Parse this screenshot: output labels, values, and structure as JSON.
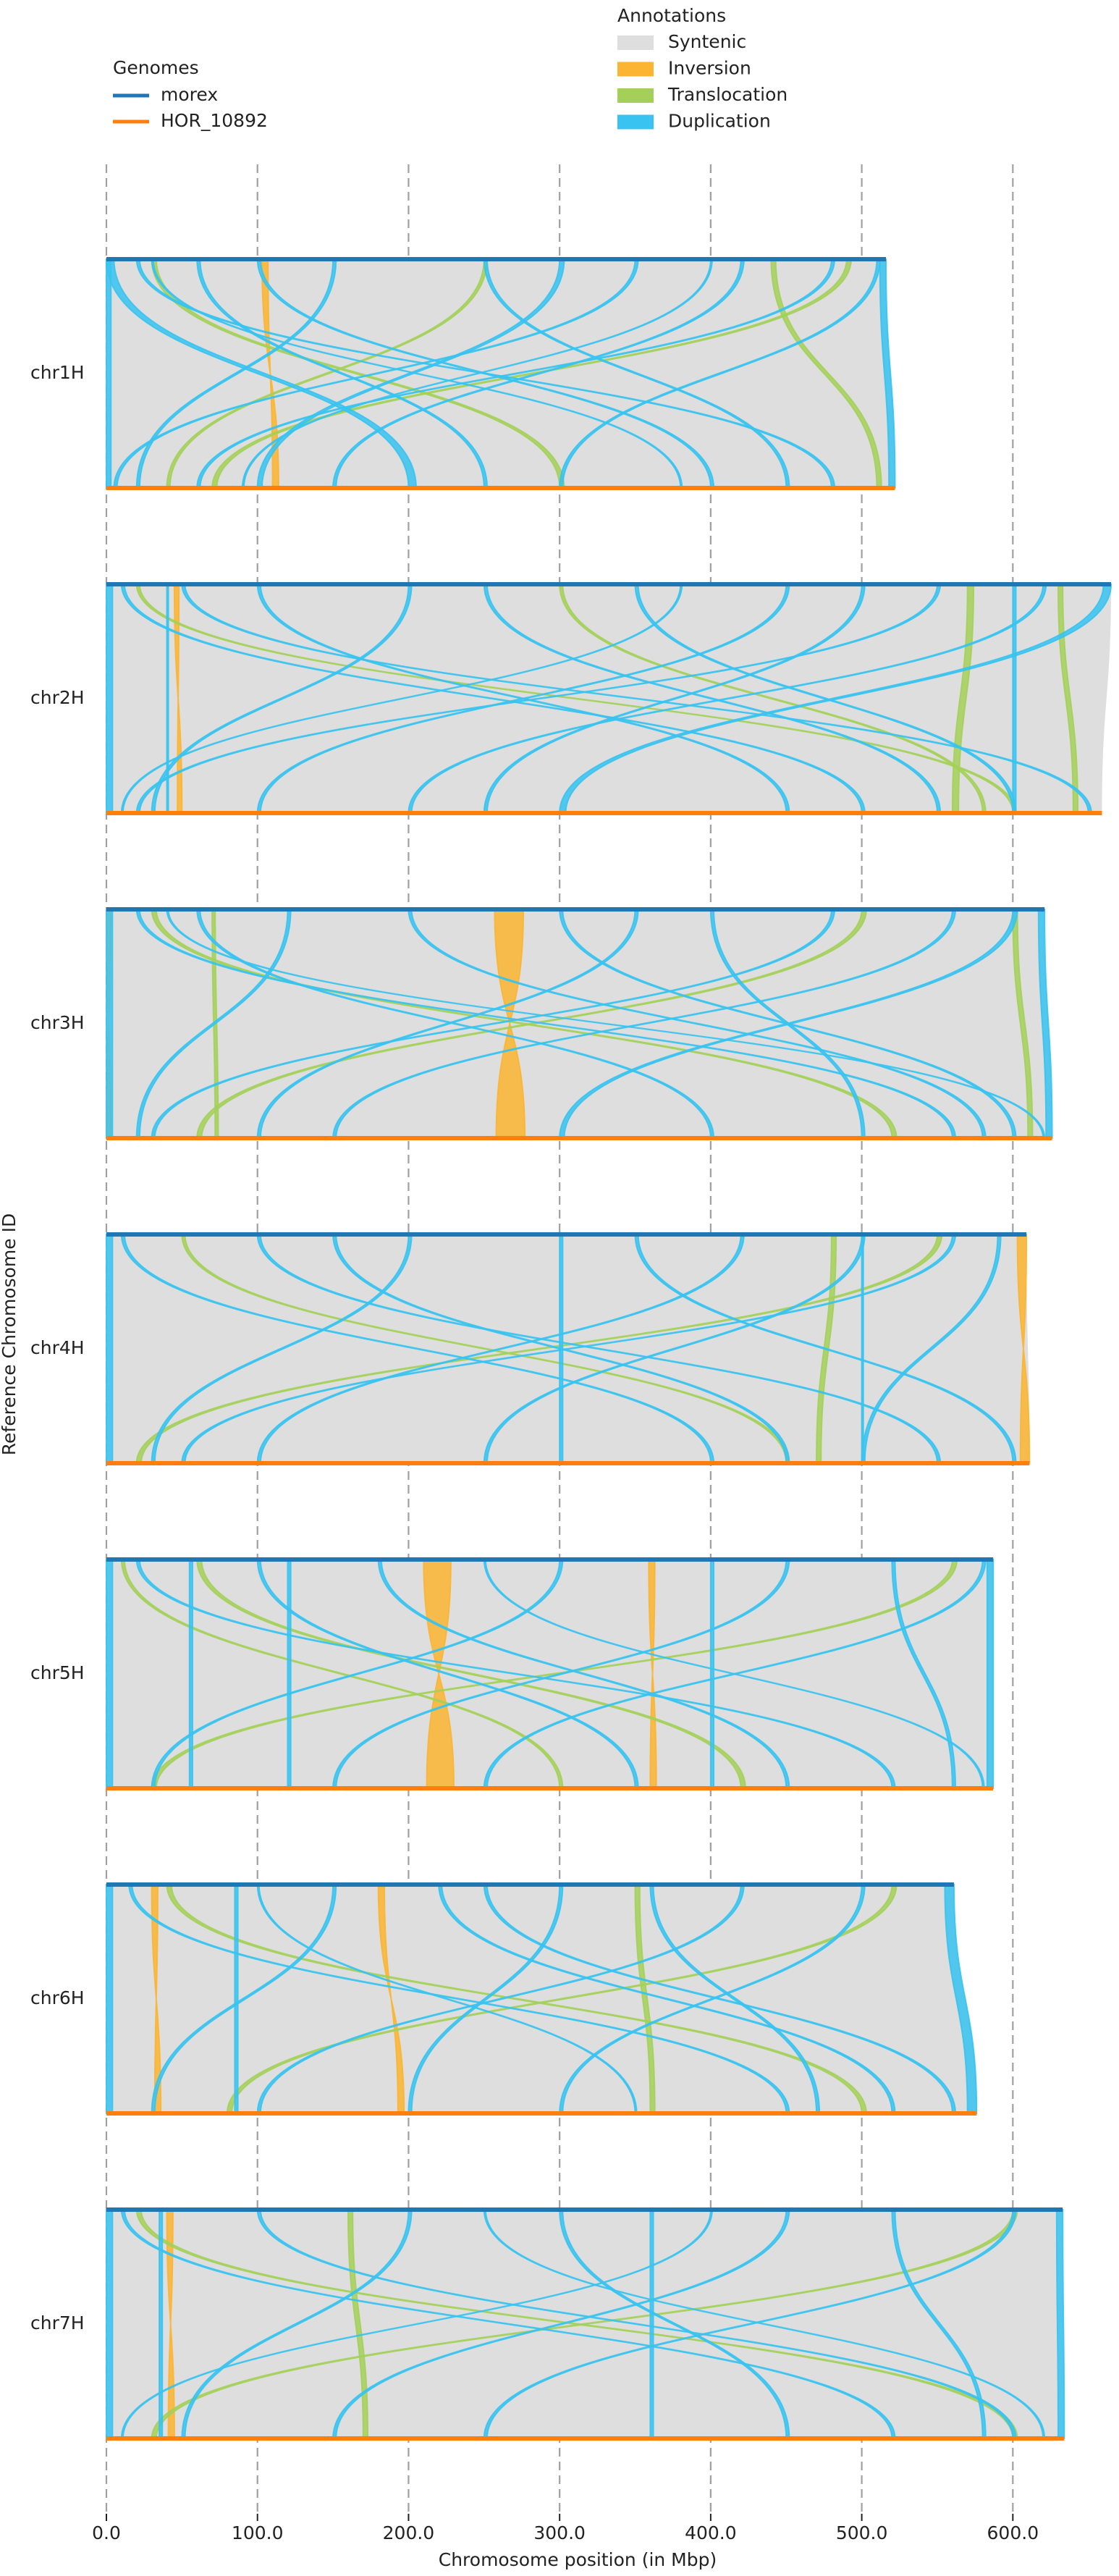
{
  "chart_data": {
    "type": "synteny",
    "xlabel": "Chromosome position (in Mbp)",
    "ylabel": "Reference Chromosome ID",
    "xlim": [
      0,
      665
    ],
    "xticks": [
      {
        "value": 0,
        "label": "0.0"
      },
      {
        "value": 100,
        "label": "100.0"
      },
      {
        "value": 200,
        "label": "200.0"
      },
      {
        "value": 300,
        "label": "300.0"
      },
      {
        "value": 400,
        "label": "400.0"
      },
      {
        "value": 500,
        "label": "500.0"
      },
      {
        "value": 600,
        "label": "600.0"
      }
    ],
    "grid": true,
    "genomes_title": "Genomes",
    "genomes": [
      {
        "name": "morex",
        "color": "#1f77b4"
      },
      {
        "name": "HOR_10892",
        "color": "#ff7f0e"
      }
    ],
    "annotations_title": "Annotations",
    "annotations": [
      {
        "name": "Syntenic",
        "color": "#dedede"
      },
      {
        "name": "Inversion",
        "color": "#fbb532"
      },
      {
        "name": "Translocation",
        "color": "#a4d05a"
      },
      {
        "name": "Duplication",
        "color": "#38c3f0"
      }
    ],
    "chromosomes": [
      {
        "name": "chr1H",
        "lengths": [
          516,
          522
        ],
        "blocks": [
          [
            [
              0,
              516,
              0,
              522
            ]
          ],
          [
            [
              103,
              107,
              114,
              110
            ]
          ],
          [
            [
              30,
              33,
              300,
              303
            ],
            [
              250,
              252,
              40,
              42
            ],
            [
              440,
              443,
              510,
              513
            ],
            [
              490,
              493,
              70,
              73
            ]
          ],
          [
            [
              0,
              5,
              200,
              205
            ],
            [
              20,
              22,
              480,
              482
            ],
            [
              100,
              102,
              400,
              402
            ],
            [
              150,
              152,
              20,
              22
            ],
            [
              300,
              303,
              100,
              103
            ],
            [
              350,
              352,
              5,
              7
            ],
            [
              480,
              482,
              60,
              62
            ],
            [
              510,
              512,
              300,
              302
            ],
            [
              60,
              62,
              250,
              252
            ],
            [
              250,
              252,
              450,
              452
            ],
            [
              420,
              422,
              150,
              152
            ],
            [
              0,
              3,
              0,
              3
            ],
            [
              512,
              516,
              518,
              522
            ],
            [
              30,
              31,
              380,
              381
            ],
            [
              400,
              401,
              90,
              91
            ]
          ]
        ]
      },
      {
        "name": "chr2H",
        "lengths": [
          665,
          659
        ],
        "blocks": [
          [
            [
              0,
              665,
              0,
              659
            ]
          ],
          [
            [
              45,
              48,
              50,
              47
            ]
          ],
          [
            [
              570,
              574,
              560,
              564
            ],
            [
              20,
              22,
              600,
              602
            ],
            [
              630,
              633,
              640,
              643
            ],
            [
              300,
              302,
              580,
              582
            ]
          ],
          [
            [
              0,
              4,
              0,
              4
            ],
            [
              10,
              12,
              500,
              502
            ],
            [
              50,
              52,
              650,
              652
            ],
            [
              100,
              102,
              450,
              452
            ],
            [
              200,
              202,
              30,
              32
            ],
            [
              350,
              352,
              600,
              602
            ],
            [
              450,
              452,
              100,
              102
            ],
            [
              550,
              552,
              20,
              22
            ],
            [
              620,
              622,
              200,
              202
            ],
            [
              660,
              665,
              300,
              304
            ],
            [
              250,
              252,
              550,
              552
            ],
            [
              500,
              502,
              250,
              252
            ],
            [
              600,
              602,
              600,
              602
            ],
            [
              40,
              41,
              40,
              41
            ],
            [
              380,
              381,
              10,
              11
            ]
          ]
        ]
      },
      {
        "name": "chr3H",
        "lengths": [
          621,
          626
        ],
        "blocks": [
          [
            [
              0,
              621,
              0,
              626
            ]
          ],
          [
            [
              257,
              276,
              277,
              258
            ],
            [
              0,
              3,
              3,
              0
            ]
          ],
          [
            [
              30,
              33,
              520,
              523
            ],
            [
              500,
              503,
              60,
              63
            ],
            [
              70,
              72,
              72,
              74
            ],
            [
              600,
              603,
              610,
              613
            ]
          ],
          [
            [
              0,
              4,
              0,
              4
            ],
            [
              20,
              22,
              560,
              562
            ],
            [
              60,
              62,
              400,
              402
            ],
            [
              120,
              122,
              20,
              22
            ],
            [
              200,
              202,
              580,
              582
            ],
            [
              350,
              352,
              100,
              102
            ],
            [
              400,
              402,
              500,
              502
            ],
            [
              480,
              482,
              30,
              32
            ],
            [
              560,
              562,
              150,
              152
            ],
            [
              600,
              603,
              300,
              303
            ],
            [
              617,
              621,
              622,
              626
            ],
            [
              300,
              302,
              600,
              602
            ],
            [
              40,
              41,
              620,
              621
            ]
          ]
        ]
      },
      {
        "name": "chr4H",
        "lengths": [
          609,
          611
        ],
        "blocks": [
          [
            [
              0,
              609,
              0,
              611
            ]
          ],
          [
            [
              603,
              609,
              611,
              605
            ]
          ],
          [
            [
              480,
              483,
              470,
              473
            ],
            [
              50,
              52,
              450,
              452
            ],
            [
              550,
              553,
              20,
              23
            ]
          ],
          [
            [
              0,
              4,
              0,
              4
            ],
            [
              10,
              12,
              400,
              402
            ],
            [
              100,
              102,
              550,
              552
            ],
            [
              200,
              202,
              30,
              32
            ],
            [
              300,
              302,
              300,
              302
            ],
            [
              350,
              352,
              600,
              602
            ],
            [
              420,
              422,
              100,
              102
            ],
            [
              500,
              502,
              250,
              252
            ],
            [
              560,
              562,
              50,
              52
            ],
            [
              590,
              592,
              500,
              502
            ],
            [
              150,
              152,
              450,
              452
            ],
            [
              500,
              501,
              500,
              501
            ]
          ]
        ]
      },
      {
        "name": "chr5H",
        "lengths": [
          587,
          587
        ],
        "blocks": [
          [
            [
              0,
              587,
              0,
              587
            ]
          ],
          [
            [
              210,
              228,
              230,
              212
            ],
            [
              359,
              363,
              364,
              360
            ]
          ],
          [
            [
              60,
              63,
              420,
              423
            ],
            [
              560,
              563,
              30,
              33
            ],
            [
              10,
              12,
              300,
              302
            ]
          ],
          [
            [
              0,
              4,
              0,
              4
            ],
            [
              20,
              22,
              520,
              522
            ],
            [
              55,
              57,
              55,
              57
            ],
            [
              120,
              122,
              120,
              122
            ],
            [
              180,
              182,
              450,
              452
            ],
            [
              300,
              302,
              30,
              32
            ],
            [
              400,
              402,
              400,
              402
            ],
            [
              450,
              452,
              150,
              152
            ],
            [
              520,
              522,
              560,
              562
            ],
            [
              580,
              582,
              250,
              252
            ],
            [
              100,
              102,
              350,
              352
            ],
            [
              583,
              587,
              583,
              587
            ],
            [
              250,
              251,
              580,
              581
            ]
          ]
        ]
      },
      {
        "name": "chr6H",
        "lengths": [
          561,
          576
        ],
        "blocks": [
          [
            [
              0,
              561,
              0,
              576
            ]
          ],
          [
            [
              180,
              184,
              197,
              193
            ],
            [
              30,
              34,
              36,
              32
            ]
          ],
          [
            [
              40,
              43,
              500,
              503
            ],
            [
              350,
              353,
              360,
              363
            ],
            [
              520,
              523,
              80,
              83
            ]
          ],
          [
            [
              0,
              4,
              0,
              4
            ],
            [
              15,
              17,
              450,
              452
            ],
            [
              85,
              87,
              85,
              87
            ],
            [
              150,
              152,
              30,
              32
            ],
            [
              220,
              222,
              520,
              522
            ],
            [
              300,
              302,
              200,
              202
            ],
            [
              360,
              362,
              470,
              472
            ],
            [
              420,
              422,
              100,
              102
            ],
            [
              500,
              502,
              300,
              302
            ],
            [
              555,
              561,
              570,
              576
            ],
            [
              250,
              252,
              560,
              562
            ],
            [
              100,
              101,
              350,
              351
            ]
          ]
        ]
      },
      {
        "name": "chr7H",
        "lengths": [
          633,
          634
        ],
        "blocks": [
          [
            [
              0,
              633,
              0,
              634
            ]
          ],
          [
            [
              40,
              44,
              45,
              41
            ]
          ],
          [
            [
              20,
              23,
              600,
              603
            ],
            [
              600,
              603,
              30,
              33
            ],
            [
              160,
              163,
              170,
              173
            ]
          ],
          [
            [
              0,
              4,
              0,
              4
            ],
            [
              10,
              12,
              520,
              522
            ],
            [
              35,
              37,
              35,
              37
            ],
            [
              100,
              102,
              600,
              602
            ],
            [
              200,
              202,
              50,
              52
            ],
            [
              300,
              302,
              450,
              452
            ],
            [
              360,
              362,
              360,
              362
            ],
            [
              450,
              452,
              150,
              152
            ],
            [
              520,
              522,
              580,
              582
            ],
            [
              600,
              602,
              250,
              252
            ],
            [
              629,
              633,
              630,
              634
            ],
            [
              250,
              251,
              620,
              621
            ],
            [
              400,
              401,
              10,
              11
            ]
          ]
        ]
      }
    ]
  }
}
